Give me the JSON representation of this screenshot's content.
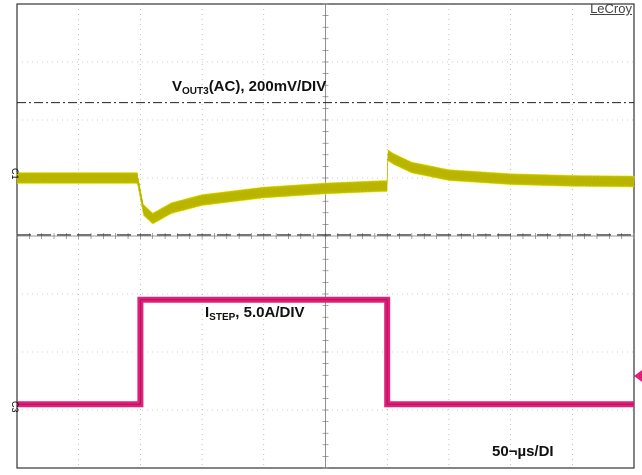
{
  "brand": "LeCroy",
  "ch1_marker": "C1",
  "ch3_marker": "C3",
  "labels": {
    "vout_prefix": "V",
    "vout_sub": "OUT3",
    "vout_suffix": "(AC), 200mV/DIV",
    "istep_prefix": "I",
    "istep_sub": "STEP",
    "istep_suffix": ", 5.0A/DIV",
    "timebase": "50¬µs/DI"
  },
  "colors": {
    "ch1": "#e8e800",
    "ch1_dark": "#b8b400",
    "ch3": "#e0207a",
    "grid": "#9a9a9a",
    "background": "#ffffff"
  },
  "chart_data": [
    {
      "type": "line",
      "name": "V_OUT3 (AC) load-step transient",
      "x_unit": "div",
      "y_unit": "div",
      "xlim": [
        0,
        10
      ],
      "ylim": [
        -4,
        4
      ],
      "grid": true,
      "x": [
        0,
        1.95,
        2.05,
        2.2,
        2.5,
        3,
        4,
        5,
        6,
        5.9,
        6.0,
        6.1,
        6.4,
        7,
        8,
        9,
        10
      ],
      "y": [
        1.0,
        1.0,
        0.45,
        0.3,
        0.48,
        0.62,
        0.75,
        0.82,
        0.86,
        0.86,
        1.4,
        1.33,
        1.18,
        1.05,
        0.98,
        0.95,
        0.94
      ],
      "ripple_div": 0.2
    },
    {
      "type": "line",
      "name": "I_STEP current step",
      "x_unit": "div",
      "y_unit": "div",
      "xlim": [
        0,
        10
      ],
      "ylim": [
        -4,
        4
      ],
      "grid": true,
      "x": [
        0,
        2.0,
        2.0,
        6.0,
        6.0,
        10
      ],
      "y": [
        -2.9,
        -2.9,
        -1.1,
        -1.1,
        -2.9,
        -2.9
      ]
    }
  ]
}
